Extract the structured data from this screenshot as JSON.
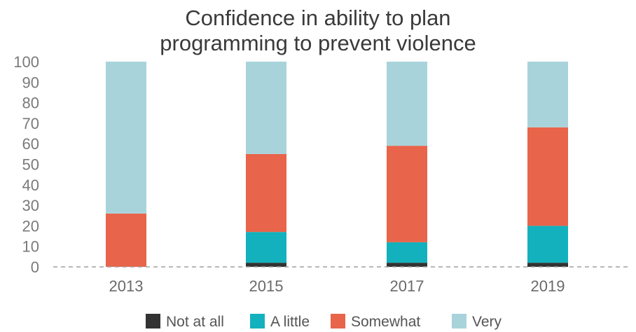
{
  "chart_data": {
    "type": "bar",
    "stacked": true,
    "title": "Confidence in ability to plan programming to prevent violence",
    "title_lines": [
      "Confidence in ability to plan",
      "programming to prevent violence"
    ],
    "xlabel": "",
    "ylabel": "",
    "ylim": [
      0,
      100
    ],
    "yticks": [
      0,
      10,
      20,
      30,
      40,
      50,
      60,
      70,
      80,
      90,
      100
    ],
    "grid": false,
    "legend_position": "bottom",
    "categories": [
      "2013",
      "2015",
      "2017",
      "2019"
    ],
    "series": [
      {
        "name": "Not at all",
        "color": "#333333",
        "values": [
          0,
          2,
          2,
          2
        ]
      },
      {
        "name": "A little",
        "color": "#13b1bd",
        "values": [
          0,
          15,
          10,
          18
        ]
      },
      {
        "name": "Somewhat",
        "color": "#e8644a",
        "values": [
          26,
          38,
          47,
          48
        ]
      },
      {
        "name": "Very",
        "color": "#a9d3db",
        "values": [
          74,
          45,
          41,
          32
        ]
      }
    ]
  }
}
